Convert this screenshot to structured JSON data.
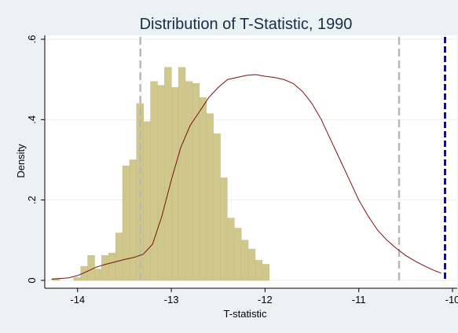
{
  "chart_data": {
    "type": "bar",
    "title": "Distribution of T-Statistic, 1990",
    "xlabel": "T-statistic",
    "ylabel": "Density",
    "xlim": [
      -14.35,
      -9.95
    ],
    "ylim": [
      0,
      0.6
    ],
    "x_ticks": [
      -14,
      -13,
      -12,
      -11,
      -10
    ],
    "x_tick_labels": [
      "-14",
      "-13",
      "-12",
      "-11",
      "-10"
    ],
    "y_ticks": [
      0,
      0.2,
      0.4,
      0.6
    ],
    "y_tick_labels": [
      "0",
      ".2",
      ".4",
      ".6"
    ],
    "grid": true,
    "bin_start": -14.265,
    "bin_width": 0.0745,
    "histogram_values": [
      0.005,
      0,
      0,
      0.007,
      0.035,
      0.062,
      0.028,
      0.062,
      0.068,
      0.118,
      0.285,
      0.3,
      0.44,
      0.395,
      0.495,
      0.485,
      0.53,
      0.48,
      0.53,
      0.495,
      0.49,
      0.455,
      0.415,
      0.365,
      0.255,
      0.155,
      0.13,
      0.1,
      0.078,
      0.05,
      0.04
    ],
    "kde": {
      "x": [
        -14.28,
        -14.1,
        -14.0,
        -13.9,
        -13.8,
        -13.7,
        -13.6,
        -13.5,
        -13.4,
        -13.3,
        -13.2,
        -13.1,
        -13.0,
        -12.9,
        -12.8,
        -12.7,
        -12.6,
        -12.5,
        -12.4,
        -12.3,
        -12.2,
        -12.1,
        -12.0,
        -11.9,
        -11.8,
        -11.7,
        -11.6,
        -11.5,
        -11.4,
        -11.3,
        -11.2,
        -11.1,
        -11.0,
        -10.9,
        -10.8,
        -10.7,
        -10.6,
        -10.5,
        -10.4,
        -10.3,
        -10.2,
        -10.12
      ],
      "y": [
        0.003,
        0.006,
        0.012,
        0.022,
        0.033,
        0.04,
        0.046,
        0.052,
        0.057,
        0.065,
        0.09,
        0.16,
        0.25,
        0.33,
        0.385,
        0.42,
        0.455,
        0.48,
        0.5,
        0.505,
        0.51,
        0.512,
        0.508,
        0.505,
        0.5,
        0.49,
        0.47,
        0.44,
        0.4,
        0.35,
        0.3,
        0.25,
        0.2,
        0.16,
        0.125,
        0.1,
        0.08,
        0.062,
        0.048,
        0.036,
        0.025,
        0.018
      ]
    },
    "reference_lines": [
      {
        "x": -13.33,
        "style": "dashed",
        "color": "#b8b8b8"
      },
      {
        "x": -10.57,
        "style": "dashed",
        "color": "#b8b8b8"
      },
      {
        "x": -10.08,
        "style": "dashed",
        "color": "#0000ee"
      }
    ],
    "colors": {
      "background": "#eaf2f3",
      "plot_background": "#ffffff",
      "bar_fill": "#d0c78d",
      "bar_edge": "#c4bb80",
      "kde_line": "#7a1010",
      "grid": "#e8eeee"
    }
  }
}
